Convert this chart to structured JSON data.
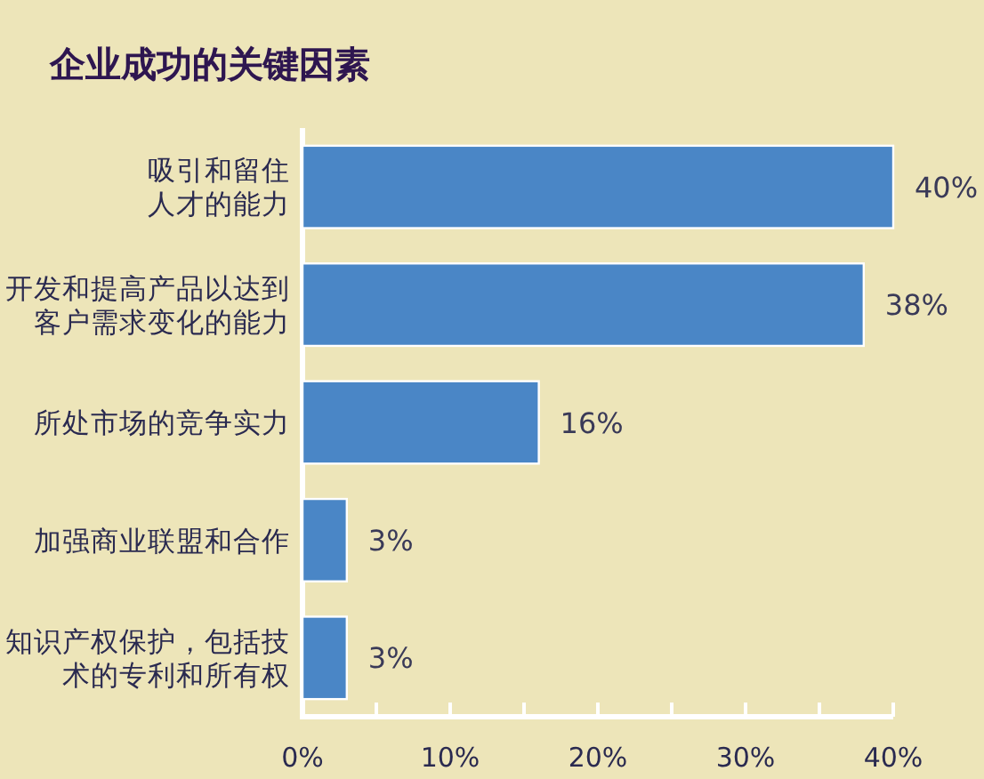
{
  "chart_data": {
    "type": "bar",
    "orientation": "horizontal",
    "title": "企业成功的关键因素",
    "categories": [
      "吸引和留住人才的能力",
      "开发和提高产品以达到客户需求变化的能力",
      "所处市场的竞争实力",
      "加强商业联盟和合作",
      "知识产权保护，包括技术的专利和所有权"
    ],
    "values": [
      40,
      38,
      16,
      3,
      3
    ],
    "value_labels": [
      "40%",
      "38%",
      "16%",
      "3%",
      "3%"
    ],
    "color": "#4a86c6",
    "xlim": [
      0,
      40
    ],
    "xticks": [
      {
        "value": 0,
        "label": "0%"
      },
      {
        "value": 5,
        "label": null
      },
      {
        "value": 10,
        "label": "10%"
      },
      {
        "value": 15,
        "label": null
      },
      {
        "value": 20,
        "label": "20%"
      },
      {
        "value": 25,
        "label": null
      },
      {
        "value": 30,
        "label": "30%"
      },
      {
        "value": 35,
        "label": null
      },
      {
        "value": 40,
        "label": "40%"
      }
    ]
  }
}
